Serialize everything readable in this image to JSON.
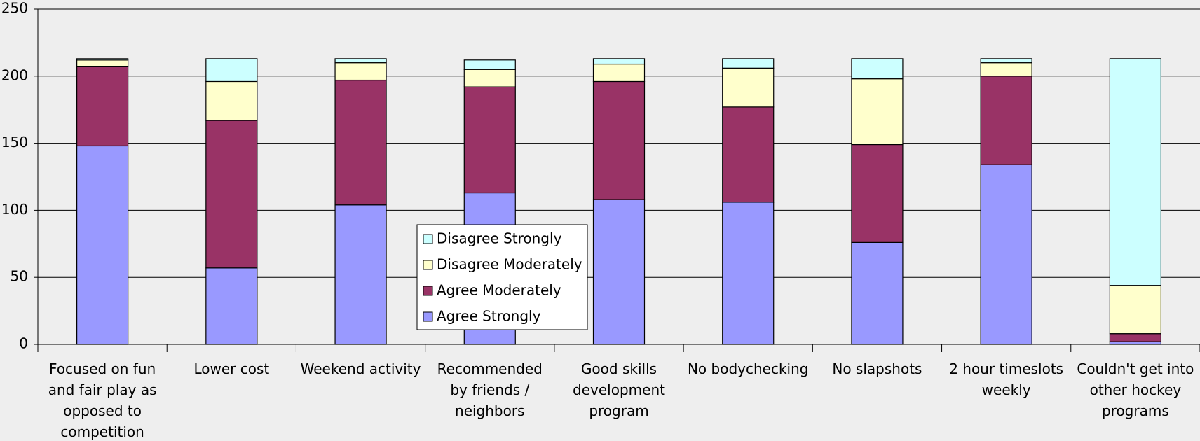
{
  "chart_data": {
    "type": "bar",
    "stacked": true,
    "categories": [
      "Focused on fun and fair play as opposed to competition",
      "Lower cost",
      "Weekend activity",
      "Recommended by friends / neighbors",
      "Good skills development program",
      "No bodychecking",
      "No slapshots",
      "2 hour timeslots weekly",
      "Couldn't get into other hockey programs"
    ],
    "series": [
      {
        "name": "Agree Strongly",
        "color": "#9999ff",
        "values": [
          148,
          57,
          104,
          113,
          108,
          106,
          76,
          134,
          2
        ]
      },
      {
        "name": "Agree Moderately",
        "color": "#993366",
        "values": [
          59,
          110,
          93,
          79,
          88,
          71,
          73,
          66,
          6
        ]
      },
      {
        "name": "Disagree Moderately",
        "color": "#ffffcc",
        "values": [
          5,
          29,
          13,
          13,
          13,
          29,
          49,
          10,
          36
        ]
      },
      {
        "name": "Disagree Strongly",
        "color": "#ccffff",
        "values": [
          1,
          17,
          3,
          7,
          4,
          7,
          15,
          3,
          169
        ]
      }
    ],
    "ylim": [
      0,
      250
    ],
    "yticks": [
      0,
      50,
      100,
      150,
      200,
      250
    ],
    "grid": true,
    "legend": "center"
  }
}
